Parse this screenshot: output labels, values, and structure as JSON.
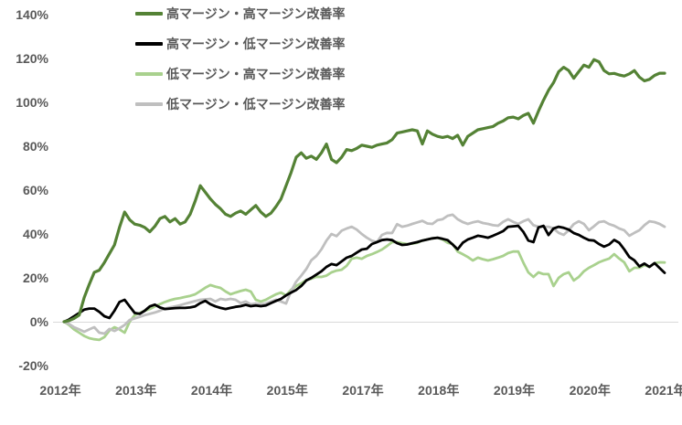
{
  "chart": {
    "background": "#ffffff",
    "text_color": "#595959",
    "gridline_color": "#d9d9d9"
  },
  "legend": {
    "position": "top-left"
  },
  "chart_data": {
    "type": "line",
    "title": "",
    "xlabel": "",
    "ylabel": "",
    "y_axis": {
      "min": -20,
      "max": 140,
      "step": 20,
      "unit": "%",
      "gridlines_visible_at": [
        0
      ]
    },
    "y_tick_labels": [
      "140%",
      "120%",
      "100%",
      "80%",
      "60%",
      "40%",
      "20%",
      "0%",
      "-20%"
    ],
    "y_tick_values": [
      140,
      120,
      100,
      80,
      60,
      40,
      20,
      0,
      -20
    ],
    "x_tick_labels": [
      "2012年",
      "2013年",
      "2014年",
      "2015年",
      "2017年",
      "2018年",
      "2019年",
      "2020年",
      "2021年"
    ],
    "x_range_note": "monthly data 2012-2021",
    "legend_position": "top-left",
    "series": [
      {
        "name": "高マージン・高マージン改善率",
        "color": "#548235",
        "stroke_width": 3.2,
        "values": [
          0,
          0.5,
          1.5,
          3,
          11,
          17,
          22.5,
          23.5,
          27,
          31,
          35,
          43,
          50,
          46.5,
          44.5,
          44,
          43,
          41,
          43.5,
          47,
          48,
          45.5,
          47,
          44.5,
          45.5,
          49,
          55,
          62,
          59,
          56,
          53.5,
          51.5,
          49,
          48,
          49.5,
          50.5,
          49,
          51,
          53,
          50,
          48,
          49.5,
          52.5,
          56,
          62,
          68,
          75,
          77,
          74.5,
          75.5,
          74,
          77,
          81,
          74,
          72.5,
          75,
          78.5,
          78,
          79,
          80.5,
          80,
          79.5,
          80.5,
          81,
          81.5,
          83,
          86,
          86.5,
          87,
          87.5,
          87,
          81,
          87,
          85.5,
          84.5,
          84,
          84.5,
          83.5,
          85,
          80.5,
          84.5,
          86,
          87.5,
          88,
          88.5,
          89,
          90.5,
          91.5,
          93,
          93.3,
          92.5,
          94,
          95,
          90.5,
          96,
          101,
          105.5,
          109,
          114,
          116,
          114.5,
          111,
          114,
          117,
          116,
          119.5,
          118.5,
          114.5,
          113,
          113.2,
          112.5,
          112,
          113,
          114.5,
          111.5,
          109.8,
          110.5,
          112.3,
          113.3,
          113.3
        ]
      },
      {
        "name": "高マージン・低マージン改善率",
        "color": "#000000",
        "stroke_width": 2.8,
        "values": [
          0,
          1,
          2.5,
          4,
          5.5,
          6,
          6,
          4.5,
          2.5,
          1.7,
          5,
          9,
          10,
          7,
          4,
          3.6,
          5,
          7,
          7.8,
          6.5,
          5.8,
          6,
          6.2,
          6.3,
          6.3,
          6.5,
          7,
          8.5,
          9.5,
          8,
          7,
          6.3,
          5.8,
          6.3,
          6.8,
          7.1,
          7.7,
          7.1,
          7.4,
          7.1,
          7.4,
          8.5,
          9.5,
          10.4,
          12,
          13.3,
          14.5,
          16.3,
          18.8,
          20,
          21.5,
          23,
          25,
          26.3,
          25.8,
          27.5,
          29.2,
          30,
          31.5,
          32.9,
          33.3,
          35.4,
          36.3,
          37.2,
          37.5,
          37.2,
          35.8,
          35,
          35.2,
          35.8,
          36.3,
          37,
          37.5,
          38,
          38.3,
          37.8,
          37.2,
          35.2,
          33,
          36,
          37.5,
          38.3,
          39.2,
          38.8,
          38.3,
          39.2,
          40.2,
          41.3,
          43.3,
          43.5,
          43.7,
          41,
          37,
          36.3,
          43,
          43.7,
          39.5,
          42.5,
          43.3,
          42.8,
          42,
          40.4,
          39.6,
          38.3,
          37.2,
          37,
          35.4,
          34.2,
          35.2,
          37.3,
          36,
          33,
          29.5,
          28,
          25.2,
          26.5,
          25,
          26.7,
          24.5,
          22.3
        ]
      },
      {
        "name": "低マージン・高マージン改善率",
        "color": "#a9d18e",
        "stroke_width": 2.8,
        "values": [
          0,
          -1.5,
          -3.5,
          -5,
          -6.5,
          -7.5,
          -8,
          -8.3,
          -7,
          -4,
          -2.5,
          -3.5,
          -5,
          0,
          3,
          4,
          5,
          5.8,
          7,
          8,
          9,
          9.8,
          10.4,
          10.8,
          11.3,
          11.8,
          12.5,
          14,
          15.5,
          16.7,
          16,
          15.4,
          13.8,
          12.5,
          13.3,
          14,
          14.6,
          13.8,
          10,
          9.2,
          10,
          11.3,
          12.5,
          13.3,
          12,
          14.6,
          16.3,
          17.5,
          19,
          19.6,
          20.5,
          20.4,
          21,
          22.5,
          23.3,
          23.7,
          25.5,
          28.7,
          29.2,
          28.7,
          30,
          30.8,
          31.8,
          32.9,
          34.5,
          36.3,
          36.3,
          35.8,
          35.4,
          35.6,
          36,
          37,
          37.5,
          38,
          38.3,
          37.5,
          36,
          35.4,
          32,
          30.8,
          29.5,
          27.9,
          29.2,
          28.5,
          27.9,
          28.5,
          29.2,
          30,
          31.3,
          32,
          32,
          27,
          22.5,
          20.4,
          22.5,
          21.7,
          21.7,
          16.3,
          20,
          21.7,
          22.5,
          18.8,
          20.4,
          23,
          24.6,
          25.8,
          27.1,
          28,
          28.8,
          30.8,
          28.8,
          27.1,
          23,
          24.6,
          24.6,
          25.8,
          25,
          26.7,
          27.1,
          27
        ]
      },
      {
        "name": "低マージン・低マージン改善率",
        "color": "#bfbfbf",
        "stroke_width": 2.8,
        "values": [
          0,
          -1,
          -2.5,
          -3.5,
          -4.6,
          -3.5,
          -2.5,
          -5,
          -5.4,
          -3.3,
          -4.2,
          -3,
          -1.5,
          0.8,
          1.5,
          2.2,
          3,
          3.6,
          4.2,
          5,
          6,
          6.5,
          7,
          7.5,
          8.2,
          8.8,
          9.4,
          10,
          10.2,
          10.4,
          9.2,
          10.4,
          10,
          10.4,
          10,
          8.5,
          9.2,
          7.9,
          8.3,
          7.9,
          8.3,
          9.2,
          10,
          9.2,
          8.3,
          14,
          18.3,
          21,
          24,
          28,
          30,
          33,
          37,
          40,
          39,
          41.5,
          42.5,
          43.3,
          42,
          40,
          38.3,
          36.9,
          36.3,
          39.6,
          40.5,
          40.4,
          44.5,
          43.3,
          43.8,
          44.6,
          45.3,
          46,
          44.8,
          44.6,
          46.3,
          46.7,
          48.3,
          48.8,
          46.7,
          45.4,
          44.6,
          45.3,
          45.8,
          45,
          44.6,
          44,
          43.75,
          45.5,
          46.7,
          45.5,
          44.6,
          45.8,
          46.7,
          44,
          43.3,
          43.3,
          43.3,
          42.5,
          40.5,
          39.6,
          41.7,
          44.5,
          45.8,
          44.6,
          41.7,
          43.5,
          45.4,
          45.8,
          44.5,
          43.75,
          42.5,
          41.7,
          39.2,
          40.5,
          41.7,
          44,
          45.8,
          45.4,
          44.6,
          43.3
        ]
      }
    ]
  }
}
